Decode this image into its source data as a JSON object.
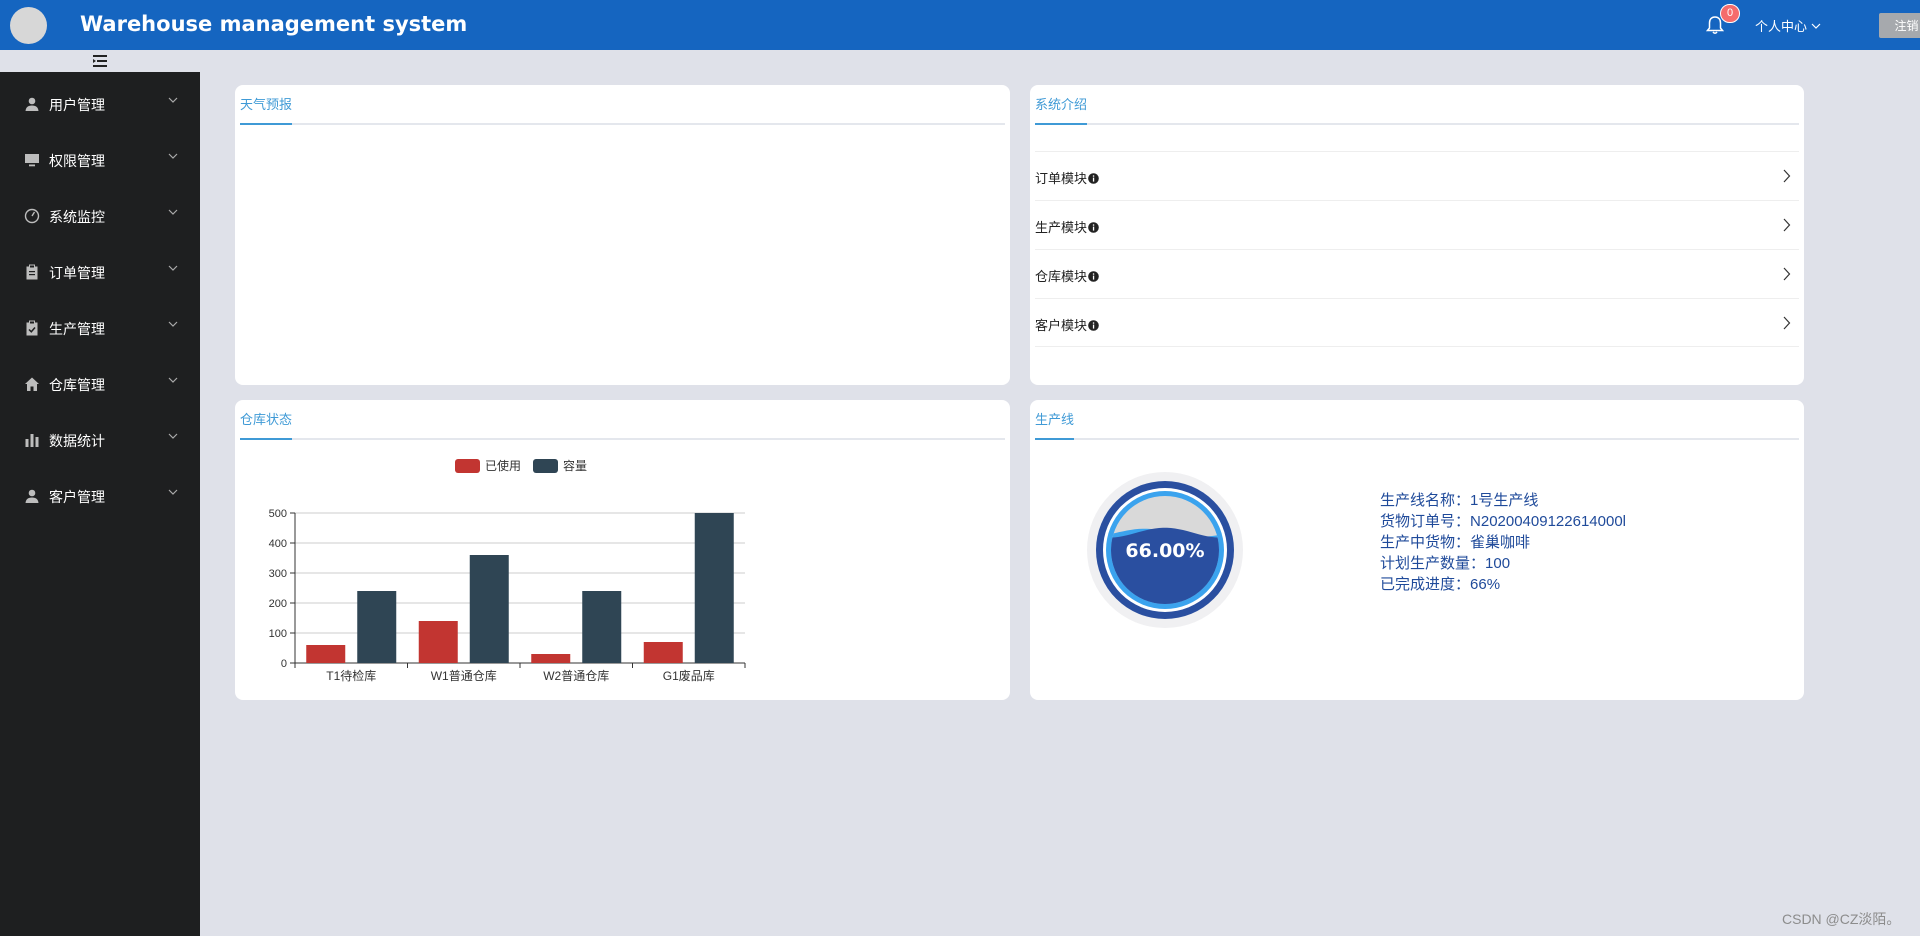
{
  "header": {
    "title": "Warehouse management system",
    "notification_count": "0",
    "personal_center": "个人中心",
    "logout_label": "注销",
    "bg_color": "#1565c0"
  },
  "sidebar": {
    "items": [
      {
        "label": "用户管理",
        "icon": "user-icon"
      },
      {
        "label": "权限管理",
        "icon": "monitor-icon"
      },
      {
        "label": "系统监控",
        "icon": "gauge-icon"
      },
      {
        "label": "订单管理",
        "icon": "clipboard-icon"
      },
      {
        "label": "生产管理",
        "icon": "clipboard-check-icon"
      },
      {
        "label": "仓库管理",
        "icon": "home-icon"
      },
      {
        "label": "数据统计",
        "icon": "bar-chart-icon"
      },
      {
        "label": "客户管理",
        "icon": "user-icon"
      }
    ]
  },
  "weather_card": {
    "tab": "天气预报"
  },
  "intro_card": {
    "tab": "系统介绍",
    "items": [
      {
        "label": "订单模块"
      },
      {
        "label": "生产模块"
      },
      {
        "label": "仓库模块"
      },
      {
        "label": "客户模块"
      }
    ]
  },
  "warehouse_card": {
    "tab": "仓库状态"
  },
  "production_card": {
    "tab": "生产线",
    "progress": 0.66,
    "progress_label": "66.00%",
    "rows": [
      {
        "key": "生产线名称：",
        "value": "1号生产线"
      },
      {
        "key": "货物订单号：",
        "value": "N20200409122614000l"
      },
      {
        "key": "生产中货物：",
        "value": "雀巢咖啡"
      },
      {
        "key": "计划生产数量：",
        "value": "100"
      },
      {
        "key": "已完成进度：",
        "value": "66%"
      }
    ]
  },
  "chart_data": {
    "type": "bar",
    "categories": [
      "T1待检库",
      "W1普通仓库",
      "W2普通仓库",
      "G1废品库"
    ],
    "series": [
      {
        "name": "已使用",
        "values": [
          60,
          140,
          30,
          70
        ],
        "color": "#c23531"
      },
      {
        "name": "容量",
        "values": [
          240,
          360,
          240,
          500
        ],
        "color": "#2f4554"
      }
    ],
    "yticks": [
      0,
      100,
      200,
      300,
      400,
      500
    ],
    "ylim": [
      0,
      500
    ],
    "grid": true,
    "legend_position": "top-center"
  },
  "watermark": "CSDN @CZ淡陌。"
}
